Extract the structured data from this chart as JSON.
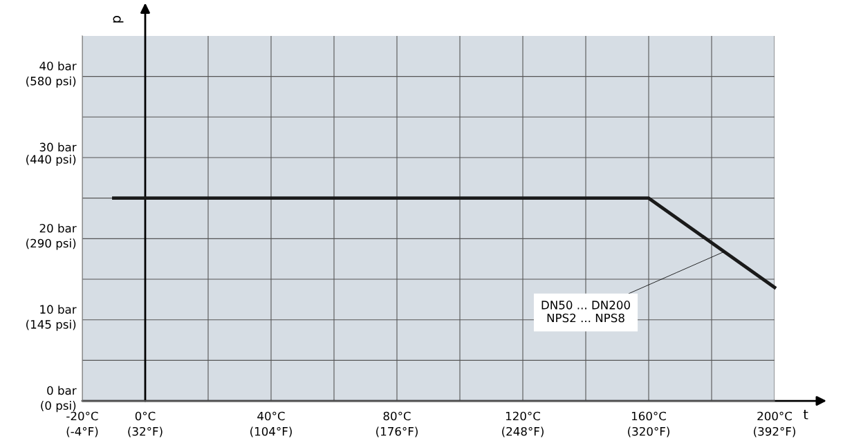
{
  "chart_data": {
    "type": "line",
    "xlabel": "t",
    "ylabel": "p",
    "x": [
      -10,
      160,
      200
    ],
    "series": [
      {
        "color": "#1a1a1a",
        "values": [
          25,
          25,
          14
        ]
      }
    ],
    "xlim": [
      -20,
      200
    ],
    "ylim": [
      0,
      45
    ],
    "xticks": [
      {
        "value": -20,
        "label": "-20°C"
      },
      {
        "value": 0,
        "label": "0°C"
      },
      {
        "value": 20,
        "label": null
      },
      {
        "value": 40,
        "label": "40°C"
      },
      {
        "value": 60,
        "label": null
      },
      {
        "value": 80,
        "label": "80°C"
      },
      {
        "value": 100,
        "label": null
      },
      {
        "value": 120,
        "label": "120°C"
      },
      {
        "value": 140,
        "label": null
      },
      {
        "value": 160,
        "label": "160°C"
      },
      {
        "value": 180,
        "label": null
      },
      {
        "value": 200,
        "label": "200°C"
      }
    ],
    "x2lim": [
      -4,
      392
    ],
    "x2ticks": [
      {
        "value": -4,
        "label": "(-4°F)"
      },
      {
        "value": 32,
        "label": "(32°F)"
      },
      {
        "value": 104,
        "label": "(104°F)"
      },
      {
        "value": 176,
        "label": "(176°F)"
      },
      {
        "value": 248,
        "label": "(248°F)"
      },
      {
        "value": 320,
        "label": "(320°F)"
      },
      {
        "value": 392,
        "label": "(392°F)"
      }
    ],
    "yticks": [
      {
        "value": 0,
        "label": "0 bar"
      },
      {
        "value": 5,
        "label": null
      },
      {
        "value": 10,
        "label": "10 bar"
      },
      {
        "value": 15,
        "label": null
      },
      {
        "value": 20,
        "label": "20 bar"
      },
      {
        "value": 25,
        "label": null
      },
      {
        "value": 30,
        "label": "30 bar"
      },
      {
        "value": 35,
        "label": null
      },
      {
        "value": 40,
        "label": "40 bar"
      }
    ],
    "y2lim": [
      0,
      652.5
    ],
    "y2ticks": [
      {
        "value": 0,
        "label": "(0 psi)"
      },
      {
        "value": 145,
        "label": "(145 psi)"
      },
      {
        "value": 290,
        "label": "(290 psi)"
      },
      {
        "value": 440,
        "label": "(440 psi)"
      },
      {
        "value": 580,
        "label": "(580 psi)"
      }
    ],
    "grid": true,
    "marker": "none",
    "line_style": "solid",
    "legend": false,
    "annotations": [
      {
        "text": "DN50 ... DN200\nNPS2 ... NPS8",
        "x": 184,
        "y": 18.4
      }
    ]
  }
}
